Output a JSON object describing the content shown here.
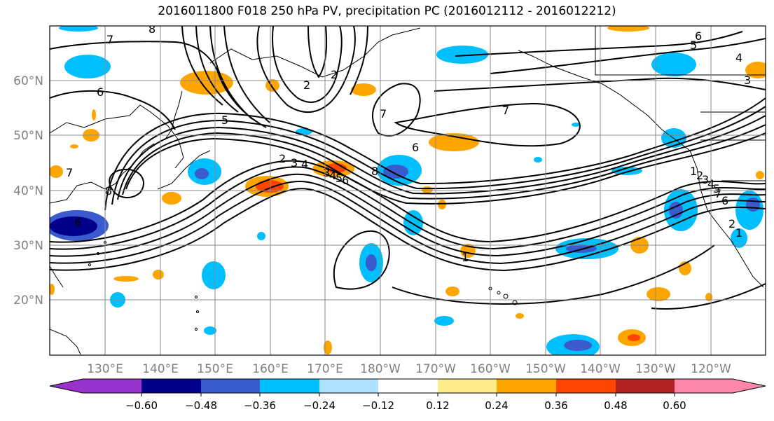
{
  "title": "2016011800 F018 250 hPa PV, precipitation PC (2016012112 - 2016012212)",
  "map": {
    "lat_labels": [
      "60°N",
      "50°N",
      "40°N",
      "30°N",
      "20°N"
    ],
    "lon_labels": [
      "130°E",
      "140°E",
      "150°E",
      "160°E",
      "170°E",
      "180°W",
      "170°W",
      "160°W",
      "150°W",
      "140°W",
      "130°W",
      "120°W"
    ],
    "contour_labels": [
      "7",
      "8",
      "6",
      "6",
      "5",
      "4",
      "3",
      "2",
      "1",
      "7",
      "2",
      "6",
      "5",
      "4",
      "3",
      "2",
      "7",
      "7",
      "6",
      "8",
      "6",
      "5",
      "4",
      "3",
      "2",
      "1",
      "8",
      "7",
      "6",
      "5",
      "4",
      "3",
      "2",
      "1"
    ]
  },
  "colorbar": {
    "colors": [
      "#9932cc",
      "#00008b",
      "#3a5bcd",
      "#00bfff",
      "#b0e2ff",
      "#ffffff",
      "#ffec8b",
      "#ffa500",
      "#ff4500",
      "#b22222",
      "#ff88aa"
    ],
    "tick_labels": [
      "−0.60",
      "−0.48",
      "−0.36",
      "−0.24",
      "−0.12",
      "0.12",
      "0.24",
      "0.36",
      "0.48",
      "0.60"
    ]
  }
}
